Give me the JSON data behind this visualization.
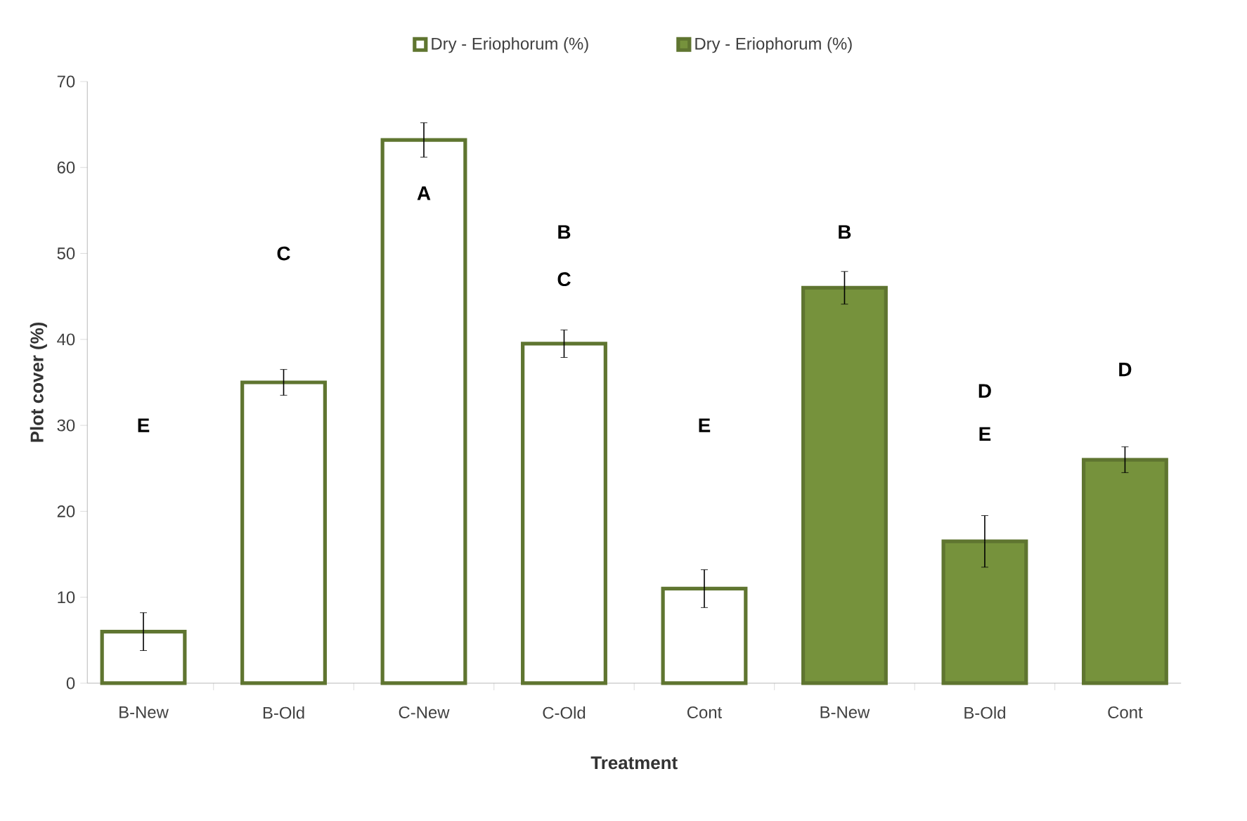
{
  "chart_data": {
    "type": "bar",
    "xlabel": "Treatment",
    "ylabel": "Plot cover (%)",
    "categories": [
      "B-New",
      "B-Old",
      "C-New",
      "C-Old",
      "Cont",
      "B-New",
      "B-Old",
      "Cont"
    ],
    "series": [
      {
        "name": "Dry - Eriophorum (%)",
        "color": "#ffffff",
        "values": [
          6,
          35,
          63.2,
          39.5,
          11,
          null,
          null,
          null
        ],
        "errors": [
          2.2,
          1.5,
          2,
          1.6,
          2.2,
          null,
          null,
          null
        ]
      },
      {
        "name": "Dry - Eriophorum (%)",
        "color": "#76923c",
        "values": [
          null,
          null,
          null,
          null,
          null,
          46,
          16.5,
          26
        ],
        "errors": [
          null,
          null,
          null,
          null,
          null,
          1.9,
          3,
          1.5
        ]
      }
    ],
    "ylim": [
      0,
      70
    ],
    "yticks": [
      0,
      10,
      20,
      30,
      40,
      50,
      60,
      70
    ],
    "grid": false,
    "legend": "top",
    "annotations": [
      "E",
      "C",
      "A",
      "B",
      "C",
      "E",
      "B",
      "D",
      "E",
      "D"
    ]
  }
}
